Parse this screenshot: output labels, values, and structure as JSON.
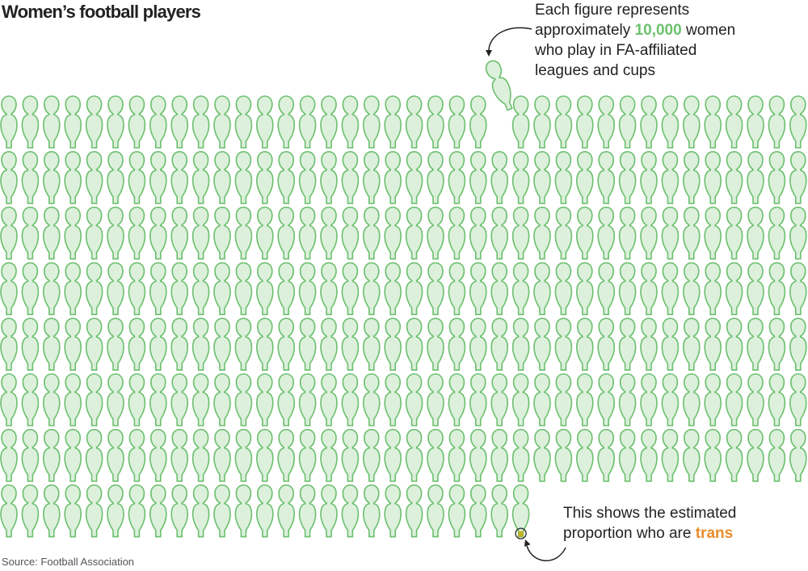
{
  "title": "Women’s football players",
  "note_top": {
    "line1": "Each figure represents",
    "line2_pre": "approximately ",
    "line2_hl": "10,000",
    "line2_post": " women",
    "line3": "who play in FA-affiliated",
    "line4": "leagues and cups"
  },
  "note_bottom": {
    "line1": "This shows the estimated",
    "line2_pre": "proportion who are ",
    "line2_hl": "trans"
  },
  "source": "Source: Football Association",
  "colors": {
    "figure_fill": "#dcf0dc",
    "figure_stroke": "#6cbf6e",
    "trans": "#c8b020",
    "text_green": "#6cc16e",
    "text_orange": "#e88d2a"
  },
  "chart_data": {
    "type": "pictogram",
    "title": "Women’s football players",
    "unit_per_figure": 10000,
    "columns": 38,
    "rows": 8,
    "total_figures": 291,
    "last_row_figures": 25,
    "trans_fraction_of_one_figure": 0.1
  }
}
